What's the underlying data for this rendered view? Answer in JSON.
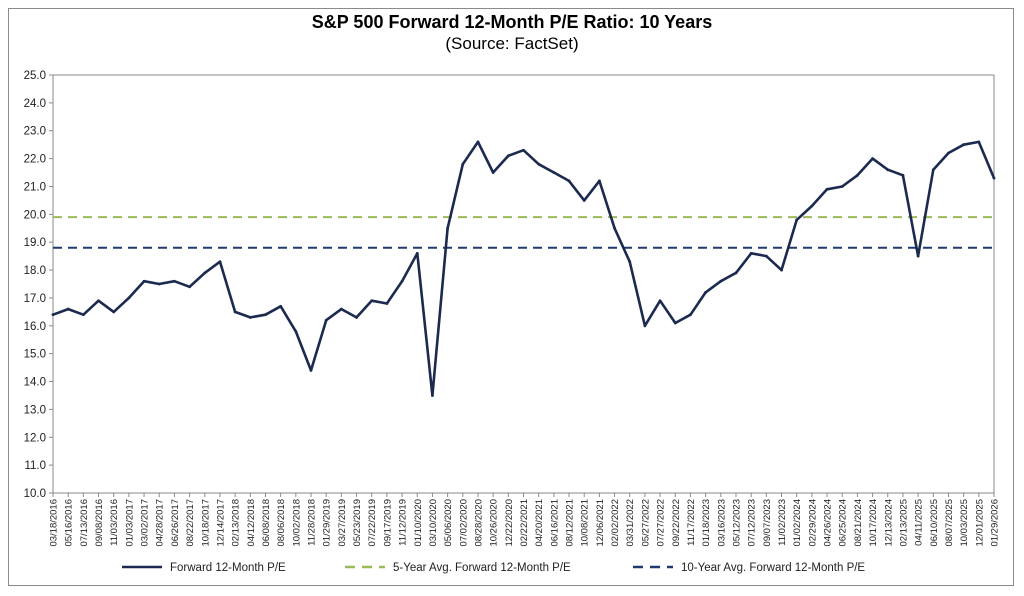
{
  "chart_data": {
    "type": "line",
    "title": "S&P 500 Forward 12-Month P/E Ratio: 10 Years",
    "subtitle": "(Source: FactSet)",
    "ylim": [
      10.0,
      25.0
    ],
    "y_ticks": [
      "25.0",
      "24.0",
      "23.0",
      "22.0",
      "21.0",
      "20.0",
      "19.0",
      "18.0",
      "17.0",
      "16.0",
      "15.0",
      "14.0",
      "13.0",
      "12.0",
      "11.0",
      "10.0"
    ],
    "x_ticks": [
      "03/18/2016",
      "05/16/2016",
      "07/13/2016",
      "09/08/2016",
      "11/03/2016",
      "01/03/2017",
      "03/02/2017",
      "04/28/2017",
      "06/26/2017",
      "08/22/2017",
      "10/18/2017",
      "12/14/2017",
      "02/13/2018",
      "04/12/2018",
      "06/08/2018",
      "08/06/2018",
      "10/02/2018",
      "11/28/2018",
      "01/29/2019",
      "03/27/2019",
      "05/23/2019",
      "07/22/2019",
      "09/17/2019",
      "11/12/2019",
      "01/10/2020",
      "03/10/2020",
      "05/06/2020",
      "07/02/2020",
      "08/28/2020",
      "10/26/2020",
      "12/22/2020",
      "02/22/2021",
      "04/20/2021",
      "06/16/2021",
      "08/12/2021",
      "10/08/2021",
      "12/06/2021",
      "02/02/2022",
      "03/31/2022",
      "05/27/2022",
      "07/27/2022",
      "09/22/2022",
      "11/17/2022",
      "01/18/2023",
      "03/16/2023",
      "05/12/2023",
      "07/12/2023",
      "09/07/2023",
      "11/02/2023",
      "01/02/2024",
      "02/29/2024",
      "04/26/2024",
      "06/25/2024",
      "08/21/2024",
      "10/17/2024",
      "12/13/2024",
      "02/13/2025",
      "04/11/2025",
      "06/10/2025",
      "08/07/2025",
      "10/03/2025",
      "12/01/2025",
      "01/29/2026"
    ],
    "grid": false,
    "legend_position": "bottom",
    "series": [
      {
        "name": "Forward 12-Month P/E",
        "color": "#1b2a4e",
        "style": "solid",
        "x": [
          0,
          1,
          2,
          3,
          4,
          5,
          6,
          7,
          8,
          9,
          10,
          11,
          12,
          13,
          14,
          15,
          16,
          17,
          18,
          19,
          20,
          21,
          22,
          23,
          24,
          25,
          26,
          27,
          28,
          29,
          30,
          31,
          32,
          33,
          34,
          35,
          36,
          37,
          38,
          39,
          40,
          41,
          42,
          43,
          44,
          45,
          46,
          47,
          48,
          49,
          50,
          51,
          52,
          53,
          54,
          55,
          56,
          57,
          58,
          59,
          60,
          61,
          62
        ],
        "values": [
          16.4,
          16.6,
          16.4,
          16.9,
          16.5,
          17.0,
          17.6,
          17.5,
          17.6,
          17.4,
          17.9,
          18.3,
          16.5,
          16.3,
          16.4,
          16.7,
          15.8,
          14.4,
          16.2,
          16.6,
          16.3,
          16.9,
          16.8,
          17.6,
          18.6,
          13.5,
          19.5,
          21.8,
          22.6,
          21.5,
          22.1,
          22.3,
          21.8,
          21.5,
          21.2,
          20.5,
          21.2,
          19.5,
          18.3,
          16.0,
          16.9,
          16.1,
          16.4,
          17.2,
          17.6,
          17.9,
          18.6,
          18.5,
          18.0,
          19.8,
          20.3,
          20.9,
          21.0,
          21.4,
          22.0,
          21.6,
          21.4,
          18.5,
          21.6,
          22.2,
          22.5,
          22.6,
          21.3
        ]
      },
      {
        "name": "5-Year Avg. Forward 12-Month P/E",
        "color": "#9bbb59",
        "style": "dashed",
        "value": 19.9
      },
      {
        "name": "10-Year Avg. Forward 12-Month P/E",
        "color": "#1f3a6e",
        "style": "dashed",
        "value": 18.8
      }
    ]
  }
}
